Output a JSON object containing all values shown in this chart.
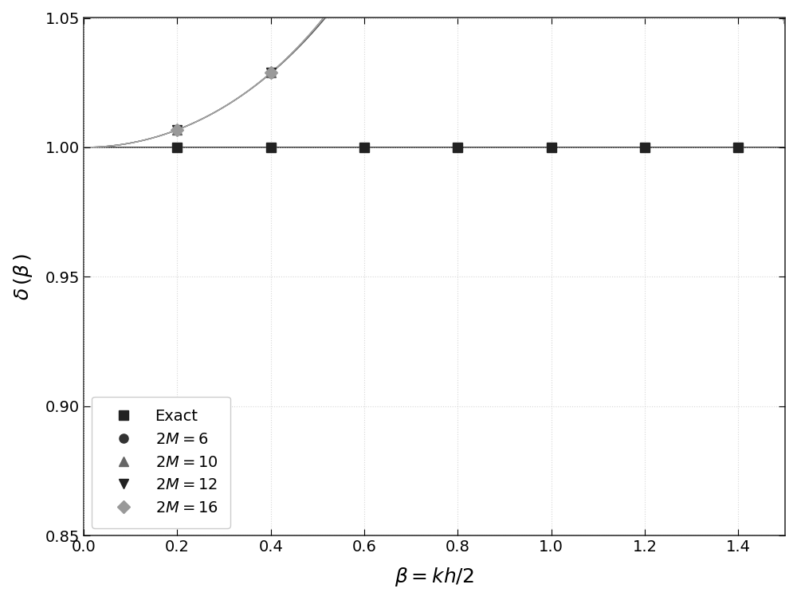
{
  "title": "",
  "xlabel": "$\\beta = kh/2$",
  "ylabel": "$\\delta\\,(\\beta\\,)$",
  "xlim": [
    0.0,
    1.5
  ],
  "ylim": [
    0.85,
    1.05
  ],
  "xticks": [
    0.0,
    0.2,
    0.4,
    0.6,
    0.8,
    1.0,
    1.2,
    1.4
  ],
  "yticks": [
    0.85,
    0.9,
    0.95,
    1.0,
    1.05
  ],
  "background_color": "#ffffff",
  "grid_color": "#cccccc",
  "series": [
    {
      "label": "Exact",
      "M": 0,
      "color": "#333333",
      "marker": "s",
      "marker_color": "#222222",
      "linestyle": "-",
      "linewidth": 1.2
    },
    {
      "label": "$2M = 6$",
      "M": 3,
      "color": "#555555",
      "marker": "o",
      "marker_color": "#333333",
      "linestyle": "-",
      "linewidth": 1.0
    },
    {
      "label": "$2M = 10$",
      "M": 5,
      "color": "#888888",
      "marker": "^",
      "marker_color": "#666666",
      "linestyle": "-",
      "linewidth": 1.0
    },
    {
      "label": "$2M = 12$",
      "M": 6,
      "color": "#555555",
      "marker": "v",
      "marker_color": "#222222",
      "linestyle": "-",
      "linewidth": 1.0
    },
    {
      "label": "$2M = 16$",
      "M": 8,
      "color": "#aaaaaa",
      "marker": "D",
      "marker_color": "#999999",
      "linestyle": "-",
      "linewidth": 1.0
    }
  ]
}
